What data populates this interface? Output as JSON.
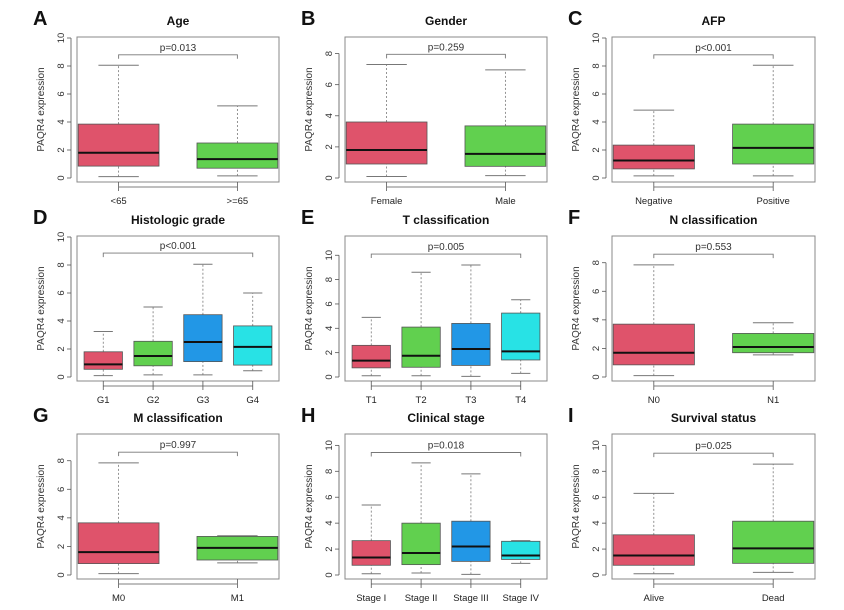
{
  "figure": {
    "colors": {
      "red": "#DF536B",
      "green": "#61D04F",
      "blue": "#2297E6",
      "cyan": "#28E2E5",
      "median": "#111111",
      "frame": "#888888",
      "whisker": "#777777"
    }
  },
  "chart_data": [
    {
      "type": "box",
      "letter": "A",
      "title": "Age",
      "ylabel": "PAQR4 expression",
      "xlabel": "",
      "ylim": [
        0,
        10
      ],
      "yticks": [
        0,
        2,
        4,
        6,
        8,
        10
      ],
      "pvalue": "p=0.013",
      "bracket_y": 8.8,
      "categories": [
        "<65",
        ">=65"
      ],
      "boxes": [
        {
          "label": "<65",
          "color": "#DF536B",
          "min": 0.1,
          "q1": 0.85,
          "median": 1.8,
          "q3": 3.85,
          "max": 8.05
        },
        {
          "label": ">=65",
          "color": "#61D04F",
          "min": 0.15,
          "q1": 0.7,
          "median": 1.35,
          "q3": 2.5,
          "max": 5.15
        }
      ]
    },
    {
      "type": "box",
      "letter": "B",
      "title": "Gender",
      "ylabel": "PAQR4 expression",
      "xlabel": "",
      "ylim": [
        0,
        9
      ],
      "yticks": [
        0,
        2,
        4,
        6,
        8
      ],
      "pvalue": "p=0.259",
      "bracket_y": 7.95,
      "categories": [
        "Female",
        "Male"
      ],
      "boxes": [
        {
          "label": "Female",
          "color": "#DF536B",
          "min": 0.1,
          "q1": 0.9,
          "median": 1.8,
          "q3": 3.6,
          "max": 7.3
        },
        {
          "label": "Male",
          "color": "#61D04F",
          "min": 0.15,
          "q1": 0.75,
          "median": 1.55,
          "q3": 3.35,
          "max": 6.95
        }
      ]
    },
    {
      "type": "box",
      "letter": "C",
      "title": "AFP",
      "ylabel": "PAQR4 expression",
      "xlabel": "",
      "ylim": [
        0,
        10
      ],
      "yticks": [
        0,
        2,
        4,
        6,
        8,
        10
      ],
      "pvalue": "p<0.001",
      "bracket_y": 8.8,
      "categories": [
        "Negative",
        "Positive"
      ],
      "boxes": [
        {
          "label": "Negative",
          "color": "#DF536B",
          "min": 0.15,
          "q1": 0.65,
          "median": 1.25,
          "q3": 2.35,
          "max": 4.85
        },
        {
          "label": "Positive",
          "color": "#61D04F",
          "min": 0.15,
          "q1": 1.0,
          "median": 2.15,
          "q3": 3.85,
          "max": 8.05
        }
      ]
    },
    {
      "type": "box",
      "letter": "D",
      "title": "Histologic grade",
      "ylabel": "PAQR4 expression",
      "xlabel": "",
      "ylim": [
        0,
        10
      ],
      "yticks": [
        0,
        2,
        4,
        6,
        8,
        10
      ],
      "pvalue": "p<0.001",
      "bracket_y": 8.85,
      "categories": [
        "G1",
        "G2",
        "G3",
        "G4"
      ],
      "boxes": [
        {
          "label": "G1",
          "color": "#DF536B",
          "min": 0.1,
          "q1": 0.55,
          "median": 0.9,
          "q3": 1.8,
          "max": 3.25
        },
        {
          "label": "G2",
          "color": "#61D04F",
          "min": 0.15,
          "q1": 0.8,
          "median": 1.5,
          "q3": 2.55,
          "max": 5.0
        },
        {
          "label": "G3",
          "color": "#2297E6",
          "min": 0.15,
          "q1": 1.1,
          "median": 2.5,
          "q3": 4.45,
          "max": 8.05
        },
        {
          "label": "G4",
          "color": "#28E2E5",
          "min": 0.45,
          "q1": 0.85,
          "median": 2.15,
          "q3": 3.65,
          "max": 6.0
        }
      ]
    },
    {
      "type": "box",
      "letter": "E",
      "title": "T classification",
      "ylabel": "PAQR4 expression",
      "xlabel": "",
      "ylim": [
        0,
        11.5
      ],
      "yticks": [
        0,
        2,
        4,
        6,
        8,
        10
      ],
      "pvalue": "p=0.005",
      "bracket_y": 10.1,
      "categories": [
        "T1",
        "T2",
        "T3",
        "T4"
      ],
      "boxes": [
        {
          "label": "T1",
          "color": "#DF536B",
          "min": 0.1,
          "q1": 0.75,
          "median": 1.35,
          "q3": 2.6,
          "max": 4.9
        },
        {
          "label": "T2",
          "color": "#61D04F",
          "min": 0.1,
          "q1": 0.8,
          "median": 1.75,
          "q3": 4.1,
          "max": 8.6
        },
        {
          "label": "T3",
          "color": "#2297E6",
          "min": 0.05,
          "q1": 0.95,
          "median": 2.3,
          "q3": 4.4,
          "max": 9.2
        },
        {
          "label": "T4",
          "color": "#28E2E5",
          "min": 0.3,
          "q1": 1.4,
          "median": 2.1,
          "q3": 5.25,
          "max": 6.35
        }
      ]
    },
    {
      "type": "box",
      "letter": "F",
      "title": "N classification",
      "ylabel": "PAQR4 expression",
      "xlabel": "",
      "ylim": [
        0,
        9.8
      ],
      "yticks": [
        0,
        2,
        4,
        6,
        8
      ],
      "pvalue": "p=0.553",
      "bracket_y": 8.6,
      "categories": [
        "N0",
        "N1"
      ],
      "boxes": [
        {
          "label": "N0",
          "color": "#DF536B",
          "min": 0.1,
          "q1": 0.85,
          "median": 1.7,
          "q3": 3.7,
          "max": 7.85
        },
        {
          "label": "N1",
          "color": "#61D04F",
          "min": 1.55,
          "q1": 1.7,
          "median": 2.1,
          "q3": 3.05,
          "max": 3.8
        }
      ]
    },
    {
      "type": "box",
      "letter": "G",
      "title": "M classification",
      "ylabel": "PAQR4 expression",
      "xlabel": "",
      "ylim": [
        0,
        9.8
      ],
      "yticks": [
        0,
        2,
        4,
        6,
        8
      ],
      "pvalue": "p=0.997",
      "bracket_y": 8.6,
      "categories": [
        "M0",
        "M1"
      ],
      "boxes": [
        {
          "label": "M0",
          "color": "#DF536B",
          "min": 0.1,
          "q1": 0.8,
          "median": 1.6,
          "q3": 3.65,
          "max": 7.85
        },
        {
          "label": "M1",
          "color": "#61D04F",
          "min": 0.85,
          "q1": 1.05,
          "median": 1.9,
          "q3": 2.7,
          "max": 2.75
        }
      ]
    },
    {
      "type": "box",
      "letter": "H",
      "title": "Clinical stage",
      "ylabel": "PAQR4 expression",
      "xlabel": "",
      "ylim": [
        0,
        10.8
      ],
      "yticks": [
        0,
        2,
        4,
        6,
        8,
        10
      ],
      "pvalue": "p=0.018",
      "bracket_y": 9.45,
      "categories": [
        "Stage I",
        "Stage II",
        "Stage III",
        "Stage IV"
      ],
      "boxes": [
        {
          "label": "Stage I",
          "color": "#DF536B",
          "min": 0.1,
          "q1": 0.75,
          "median": 1.35,
          "q3": 2.65,
          "max": 5.4
        },
        {
          "label": "Stage II",
          "color": "#61D04F",
          "min": 0.15,
          "q1": 0.8,
          "median": 1.7,
          "q3": 4.0,
          "max": 8.65
        },
        {
          "label": "Stage III",
          "color": "#2297E6",
          "min": 0.05,
          "q1": 1.05,
          "median": 2.2,
          "q3": 4.15,
          "max": 7.8
        },
        {
          "label": "Stage IV",
          "color": "#28E2E5",
          "min": 0.9,
          "q1": 1.2,
          "median": 1.5,
          "q3": 2.6,
          "max": 2.65
        }
      ]
    },
    {
      "type": "box",
      "letter": "I",
      "title": "Survival status",
      "ylabel": "PAQR4 expression",
      "xlabel": "",
      "ylim": [
        0,
        10.8
      ],
      "yticks": [
        0,
        2,
        4,
        6,
        8,
        10
      ],
      "pvalue": "p=0.025",
      "bracket_y": 9.4,
      "categories": [
        "Alive",
        "Dead"
      ],
      "boxes": [
        {
          "label": "Alive",
          "color": "#DF536B",
          "min": 0.1,
          "q1": 0.75,
          "median": 1.5,
          "q3": 3.1,
          "max": 6.3
        },
        {
          "label": "Dead",
          "color": "#61D04F",
          "min": 0.2,
          "q1": 0.9,
          "median": 2.05,
          "q3": 4.15,
          "max": 8.55
        }
      ]
    }
  ]
}
